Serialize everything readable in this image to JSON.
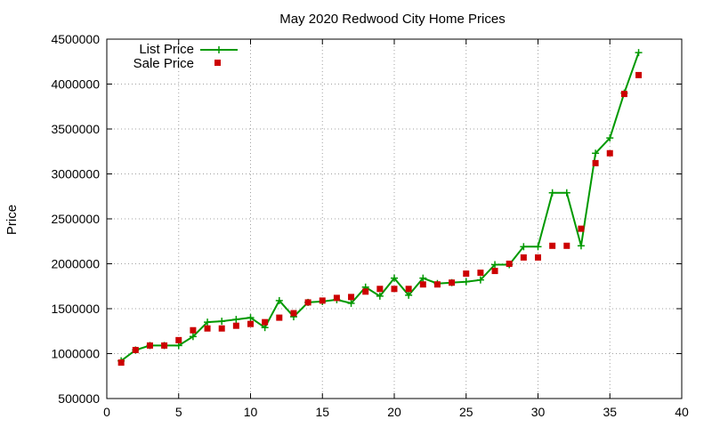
{
  "chart_data": {
    "type": "line",
    "title": "May 2020 Redwood City Home Prices",
    "xlabel": "",
    "ylabel": "Price",
    "xlim": [
      0,
      40
    ],
    "ylim": [
      500000,
      4500000
    ],
    "xticks": [
      0,
      5,
      10,
      15,
      20,
      25,
      30,
      35,
      40
    ],
    "yticks": [
      500000,
      1000000,
      1500000,
      2000000,
      2500000,
      3000000,
      3500000,
      4000000,
      4500000
    ],
    "grid": true,
    "legend_position": "top-left",
    "x": [
      1,
      2,
      3,
      4,
      5,
      6,
      7,
      8,
      9,
      10,
      11,
      12,
      13,
      14,
      15,
      16,
      17,
      18,
      19,
      20,
      21,
      22,
      23,
      24,
      25,
      26,
      27,
      28,
      29,
      30,
      31,
      32,
      33,
      34,
      35,
      36,
      37
    ],
    "series": [
      {
        "name": "List Price",
        "style": "line-plus",
        "color": "#009900",
        "values": [
          920000,
          1040000,
          1090000,
          1090000,
          1090000,
          1190000,
          1350000,
          1360000,
          1380000,
          1400000,
          1290000,
          1590000,
          1410000,
          1570000,
          1580000,
          1600000,
          1560000,
          1740000,
          1640000,
          1840000,
          1650000,
          1840000,
          1780000,
          1790000,
          1800000,
          1820000,
          1990000,
          1990000,
          2190000,
          2190000,
          2790000,
          2790000,
          2200000,
          3230000,
          3400000,
          3900000,
          4350000
        ]
      },
      {
        "name": "Sale Price",
        "style": "square-markers",
        "color": "#cc0000",
        "values": [
          900000,
          1040000,
          1090000,
          1090000,
          1150000,
          1260000,
          1280000,
          1280000,
          1310000,
          1330000,
          1350000,
          1400000,
          1450000,
          1570000,
          1590000,
          1620000,
          1630000,
          1690000,
          1720000,
          1720000,
          1720000,
          1770000,
          1770000,
          1790000,
          1890000,
          1900000,
          1920000,
          2000000,
          2070000,
          2070000,
          2200000,
          2200000,
          2390000,
          3120000,
          3230000,
          3890000,
          4100000
        ]
      }
    ]
  }
}
